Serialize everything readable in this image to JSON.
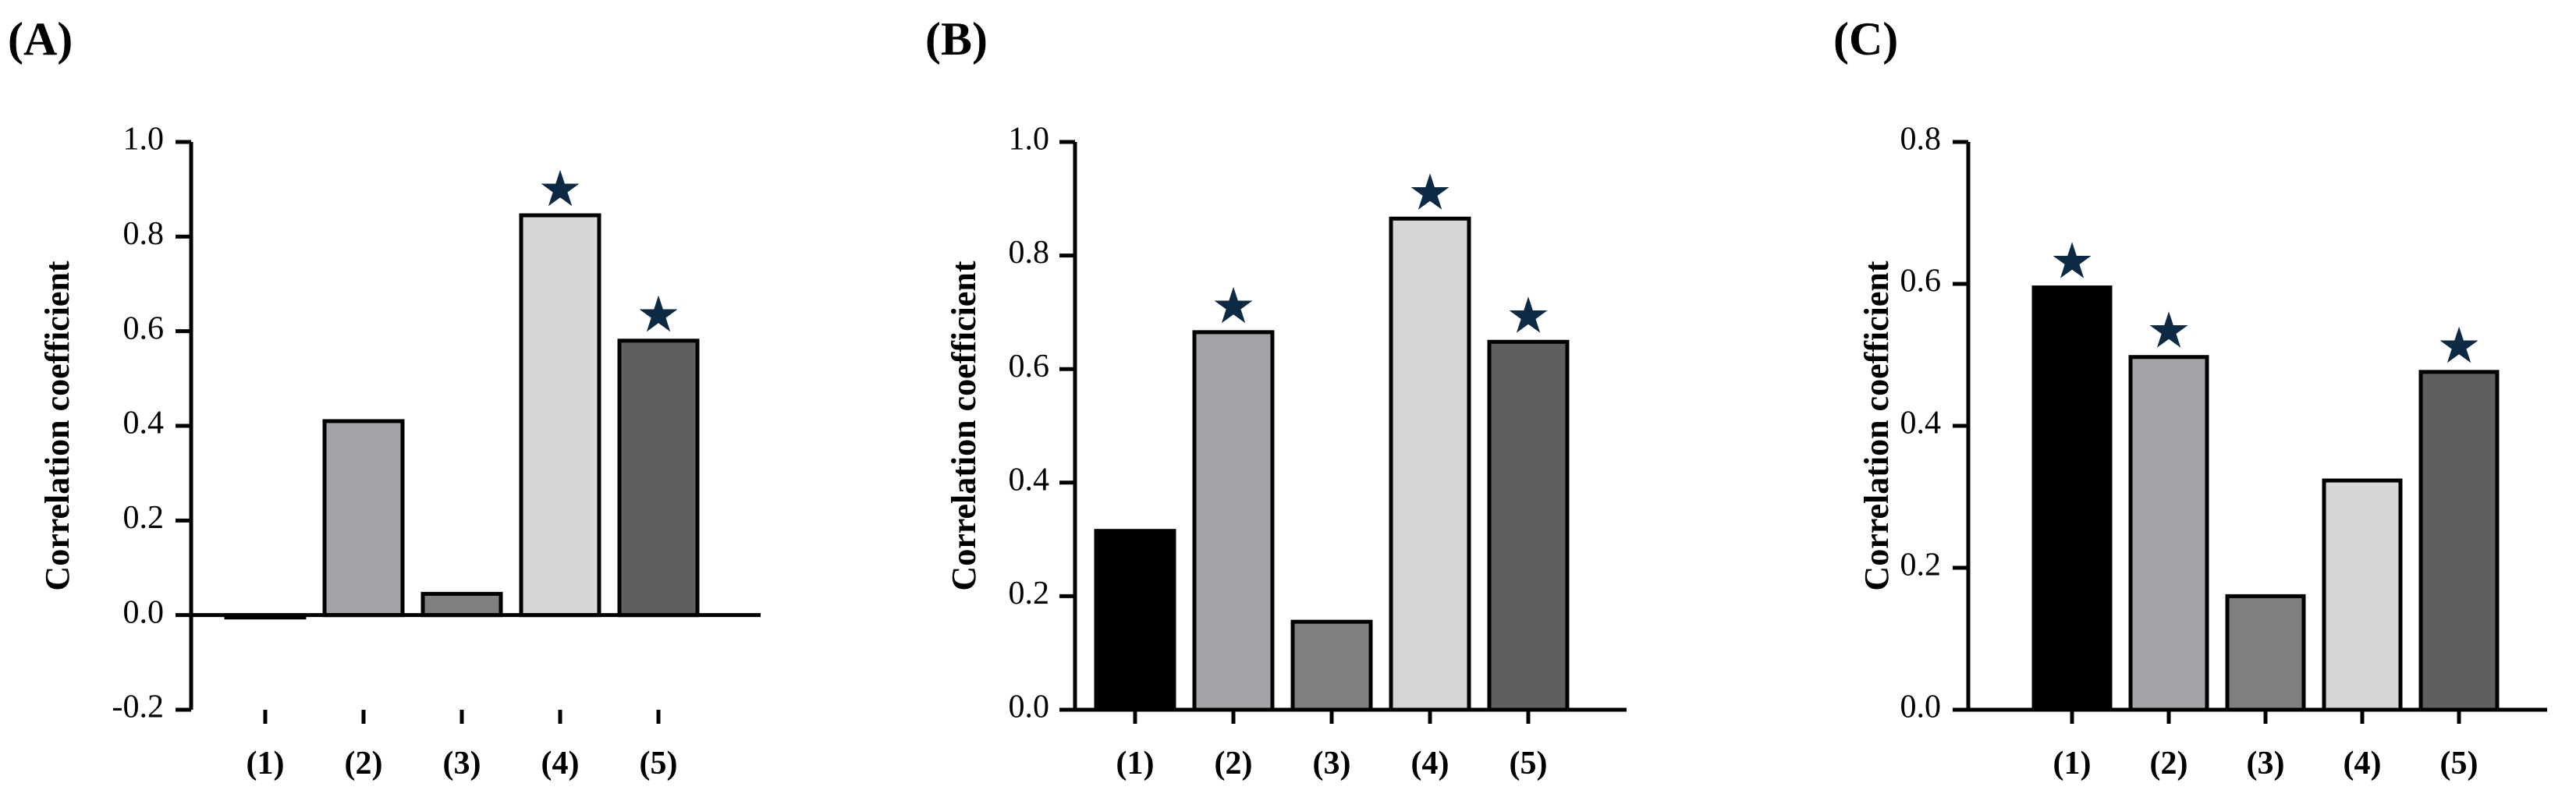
{
  "chart_data": [
    {
      "type": "bar",
      "panel_label": "(A)",
      "ylabel": "Correlation coefficient",
      "ylim": [
        -0.2,
        1.0
      ],
      "yticks": [
        -0.2,
        0.0,
        0.2,
        0.4,
        0.6,
        0.8,
        1.0
      ],
      "ytick_labels": [
        "-0.2",
        "0.0",
        "0.2",
        "0.4",
        "0.6",
        "0.8",
        "1.0"
      ],
      "categories": [
        "(1)",
        "(2)",
        "(3)",
        "(4)",
        "(5)"
      ],
      "values": [
        -0.005,
        0.41,
        0.045,
        0.845,
        0.58
      ],
      "significant": [
        false,
        false,
        false,
        true,
        true
      ],
      "bar_colors": [
        "#000000",
        "#a3a2a7",
        "#808080",
        "#d6d6d6",
        "#5f5f5f"
      ],
      "marker": "★"
    },
    {
      "type": "bar",
      "panel_label": "(B)",
      "ylabel": "Correlation coefficient",
      "ylim": [
        0.0,
        1.0
      ],
      "yticks": [
        0.0,
        0.2,
        0.4,
        0.6,
        0.8,
        1.0
      ],
      "ytick_labels": [
        "0.0",
        "0.2",
        "0.4",
        "0.6",
        "0.8",
        "1.0"
      ],
      "categories": [
        "(1)",
        "(2)",
        "(3)",
        "(4)",
        "(5)"
      ],
      "values": [
        0.315,
        0.665,
        0.155,
        0.865,
        0.648
      ],
      "significant": [
        false,
        true,
        false,
        true,
        true
      ],
      "bar_colors": [
        "#000000",
        "#a3a2a7",
        "#808080",
        "#d6d6d6",
        "#5f5f5f"
      ],
      "marker": "★"
    },
    {
      "type": "bar",
      "panel_label": "(C)",
      "ylabel": "Correlation coefficient",
      "ylim": [
        0.0,
        0.8
      ],
      "yticks": [
        0.0,
        0.2,
        0.4,
        0.6,
        0.8
      ],
      "ytick_labels": [
        "0.0",
        "0.2",
        "0.4",
        "0.6",
        "0.8"
      ],
      "categories": [
        "(1)",
        "(2)",
        "(3)",
        "(4)",
        "(5)"
      ],
      "values": [
        0.595,
        0.497,
        0.16,
        0.323,
        0.476
      ],
      "significant": [
        true,
        true,
        false,
        false,
        true
      ],
      "bar_colors": [
        "#000000",
        "#a3a2a7",
        "#808080",
        "#d6d6d6",
        "#5f5f5f"
      ],
      "marker": "★"
    }
  ]
}
